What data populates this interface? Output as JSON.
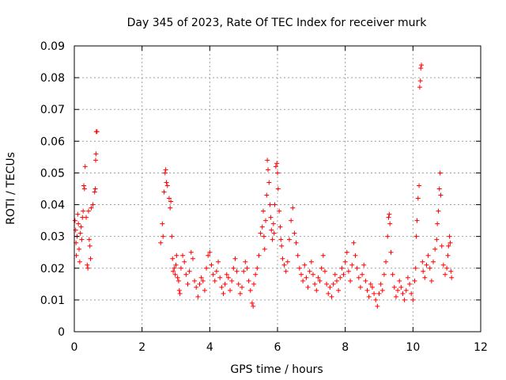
{
  "chart_data": {
    "type": "scatter",
    "title": "Day 345 of 2023, Rate Of TEC Index for receiver murk",
    "xlabel": "GPS time / hours",
    "ylabel": "ROTI / TECUs",
    "xlim": [
      0,
      12
    ],
    "ylim": [
      0,
      0.09
    ],
    "xticks": [
      0,
      2,
      4,
      6,
      8,
      10,
      12
    ],
    "yticks": [
      0,
      0.01,
      0.02,
      0.03,
      0.04,
      0.05,
      0.06,
      0.07,
      0.08,
      0.09
    ],
    "xtick_labels": [
      "0",
      "2",
      "4",
      "6",
      "8",
      "10",
      "12"
    ],
    "ytick_labels": [
      "0",
      "0.01",
      "0.02",
      "0.03",
      "0.04",
      "0.05",
      "0.06",
      "0.07",
      "0.08",
      "0.09"
    ],
    "grid": true,
    "marker": "+",
    "color": "#ff0000",
    "series": [
      {
        "name": "ROTI",
        "points": [
          [
            0.02,
            0.035
          ],
          [
            0.04,
            0.032
          ],
          [
            0.05,
            0.028
          ],
          [
            0.06,
            0.024
          ],
          [
            0.08,
            0.03
          ],
          [
            0.1,
            0.037
          ],
          [
            0.12,
            0.034
          ],
          [
            0.14,
            0.026
          ],
          [
            0.16,
            0.022
          ],
          [
            0.18,
            0.031
          ],
          [
            0.2,
            0.033
          ],
          [
            0.22,
            0.029
          ],
          [
            0.24,
            0.036
          ],
          [
            0.26,
            0.038
          ],
          [
            0.28,
            0.046
          ],
          [
            0.3,
            0.045
          ],
          [
            0.32,
            0.052
          ],
          [
            0.35,
            0.036
          ],
          [
            0.38,
            0.021
          ],
          [
            0.4,
            0.02
          ],
          [
            0.42,
            0.038
          ],
          [
            0.44,
            0.029
          ],
          [
            0.46,
            0.027
          ],
          [
            0.48,
            0.023
          ],
          [
            0.5,
            0.039
          ],
          [
            0.55,
            0.04
          ],
          [
            0.6,
            0.044
          ],
          [
            0.62,
            0.045
          ],
          [
            0.63,
            0.054
          ],
          [
            0.64,
            0.056
          ],
          [
            0.65,
            0.063
          ],
          [
            0.67,
            0.063
          ],
          [
            2.55,
            0.028
          ],
          [
            2.6,
            0.034
          ],
          [
            2.62,
            0.03
          ],
          [
            2.65,
            0.044
          ],
          [
            2.68,
            0.05
          ],
          [
            2.7,
            0.051
          ],
          [
            2.72,
            0.047
          ],
          [
            2.75,
            0.046
          ],
          [
            2.8,
            0.042
          ],
          [
            2.83,
            0.039
          ],
          [
            2.85,
            0.041
          ],
          [
            2.88,
            0.03
          ],
          [
            2.9,
            0.023
          ],
          [
            2.92,
            0.019
          ],
          [
            2.95,
            0.02
          ],
          [
            2.98,
            0.018
          ],
          [
            3.0,
            0.021
          ],
          [
            3.02,
            0.024
          ],
          [
            3.05,
            0.017
          ],
          [
            3.08,
            0.016
          ],
          [
            3.1,
            0.013
          ],
          [
            3.12,
            0.012
          ],
          [
            3.15,
            0.02
          ],
          [
            3.2,
            0.024
          ],
          [
            3.25,
            0.022
          ],
          [
            3.3,
            0.018
          ],
          [
            3.35,
            0.015
          ],
          [
            3.4,
            0.019
          ],
          [
            3.45,
            0.025
          ],
          [
            3.5,
            0.023
          ],
          [
            3.55,
            0.016
          ],
          [
            3.6,
            0.014
          ],
          [
            3.65,
            0.011
          ],
          [
            3.7,
            0.015
          ],
          [
            3.75,
            0.017
          ],
          [
            3.8,
            0.016
          ],
          [
            3.85,
            0.013
          ],
          [
            3.9,
            0.02
          ],
          [
            3.95,
            0.024
          ],
          [
            4.0,
            0.025
          ],
          [
            4.05,
            0.021
          ],
          [
            4.1,
            0.018
          ],
          [
            4.15,
            0.016
          ],
          [
            4.2,
            0.019
          ],
          [
            4.25,
            0.022
          ],
          [
            4.3,
            0.017
          ],
          [
            4.35,
            0.014
          ],
          [
            4.4,
            0.012
          ],
          [
            4.45,
            0.015
          ],
          [
            4.5,
            0.018
          ],
          [
            4.55,
            0.017
          ],
          [
            4.6,
            0.013
          ],
          [
            4.65,
            0.016
          ],
          [
            4.7,
            0.02
          ],
          [
            4.75,
            0.023
          ],
          [
            4.8,
            0.019
          ],
          [
            4.85,
            0.015
          ],
          [
            4.9,
            0.012
          ],
          [
            4.95,
            0.014
          ],
          [
            5.0,
            0.019
          ],
          [
            5.05,
            0.022
          ],
          [
            5.1,
            0.02
          ],
          [
            5.15,
            0.016
          ],
          [
            5.2,
            0.013
          ],
          [
            5.25,
            0.009
          ],
          [
            5.28,
            0.008
          ],
          [
            5.3,
            0.015
          ],
          [
            5.35,
            0.018
          ],
          [
            5.4,
            0.02
          ],
          [
            5.45,
            0.024
          ],
          [
            5.5,
            0.031
          ],
          [
            5.55,
            0.033
          ],
          [
            5.58,
            0.038
          ],
          [
            5.6,
            0.03
          ],
          [
            5.62,
            0.026
          ],
          [
            5.65,
            0.035
          ],
          [
            5.68,
            0.043
          ],
          [
            5.7,
            0.054
          ],
          [
            5.72,
            0.051
          ],
          [
            5.75,
            0.047
          ],
          [
            5.78,
            0.04
          ],
          [
            5.8,
            0.036
          ],
          [
            5.82,
            0.032
          ],
          [
            5.85,
            0.029
          ],
          [
            5.88,
            0.034
          ],
          [
            5.9,
            0.031
          ],
          [
            5.92,
            0.04
          ],
          [
            5.95,
            0.052
          ],
          [
            5.98,
            0.053
          ],
          [
            6.0,
            0.05
          ],
          [
            6.02,
            0.045
          ],
          [
            6.05,
            0.038
          ],
          [
            6.08,
            0.033
          ],
          [
            6.1,
            0.029
          ],
          [
            6.12,
            0.027
          ],
          [
            6.15,
            0.023
          ],
          [
            6.2,
            0.021
          ],
          [
            6.25,
            0.019
          ],
          [
            6.3,
            0.022
          ],
          [
            6.35,
            0.029
          ],
          [
            6.4,
            0.035
          ],
          [
            6.45,
            0.039
          ],
          [
            6.5,
            0.031
          ],
          [
            6.55,
            0.028
          ],
          [
            6.6,
            0.024
          ],
          [
            6.65,
            0.02
          ],
          [
            6.7,
            0.018
          ],
          [
            6.75,
            0.016
          ],
          [
            6.8,
            0.021
          ],
          [
            6.85,
            0.017
          ],
          [
            6.9,
            0.014
          ],
          [
            6.95,
            0.019
          ],
          [
            7.0,
            0.022
          ],
          [
            7.05,
            0.018
          ],
          [
            7.1,
            0.015
          ],
          [
            7.15,
            0.013
          ],
          [
            7.2,
            0.017
          ],
          [
            7.25,
            0.016
          ],
          [
            7.3,
            0.02
          ],
          [
            7.35,
            0.024
          ],
          [
            7.4,
            0.019
          ],
          [
            7.45,
            0.015
          ],
          [
            7.5,
            0.012
          ],
          [
            7.55,
            0.014
          ],
          [
            7.6,
            0.011
          ],
          [
            7.65,
            0.015
          ],
          [
            7.7,
            0.018
          ],
          [
            7.75,
            0.016
          ],
          [
            7.8,
            0.013
          ],
          [
            7.85,
            0.017
          ],
          [
            7.9,
            0.02
          ],
          [
            7.95,
            0.018
          ],
          [
            8.0,
            0.022
          ],
          [
            8.05,
            0.025
          ],
          [
            8.1,
            0.019
          ],
          [
            8.15,
            0.016
          ],
          [
            8.2,
            0.021
          ],
          [
            8.25,
            0.028
          ],
          [
            8.3,
            0.024
          ],
          [
            8.35,
            0.02
          ],
          [
            8.4,
            0.017
          ],
          [
            8.45,
            0.014
          ],
          [
            8.5,
            0.018
          ],
          [
            8.55,
            0.021
          ],
          [
            8.6,
            0.016
          ],
          [
            8.65,
            0.013
          ],
          [
            8.7,
            0.011
          ],
          [
            8.75,
            0.015
          ],
          [
            8.8,
            0.014
          ],
          [
            8.85,
            0.012
          ],
          [
            8.9,
            0.01
          ],
          [
            8.95,
            0.008
          ],
          [
            9.0,
            0.012
          ],
          [
            9.05,
            0.015
          ],
          [
            9.1,
            0.013
          ],
          [
            9.15,
            0.018
          ],
          [
            9.2,
            0.022
          ],
          [
            9.25,
            0.03
          ],
          [
            9.28,
            0.036
          ],
          [
            9.3,
            0.037
          ],
          [
            9.32,
            0.034
          ],
          [
            9.35,
            0.025
          ],
          [
            9.4,
            0.018
          ],
          [
            9.45,
            0.014
          ],
          [
            9.5,
            0.011
          ],
          [
            9.55,
            0.013
          ],
          [
            9.6,
            0.016
          ],
          [
            9.65,
            0.014
          ],
          [
            9.7,
            0.012
          ],
          [
            9.75,
            0.01
          ],
          [
            9.8,
            0.013
          ],
          [
            9.85,
            0.017
          ],
          [
            9.9,
            0.015
          ],
          [
            9.95,
            0.012
          ],
          [
            10.0,
            0.01
          ],
          [
            10.05,
            0.016
          ],
          [
            10.08,
            0.02
          ],
          [
            10.1,
            0.03
          ],
          [
            10.12,
            0.035
          ],
          [
            10.15,
            0.042
          ],
          [
            10.18,
            0.046
          ],
          [
            10.2,
            0.077
          ],
          [
            10.22,
            0.079
          ],
          [
            10.23,
            0.083
          ],
          [
            10.25,
            0.084
          ],
          [
            10.28,
            0.022
          ],
          [
            10.3,
            0.019
          ],
          [
            10.35,
            0.017
          ],
          [
            10.4,
            0.021
          ],
          [
            10.45,
            0.024
          ],
          [
            10.5,
            0.02
          ],
          [
            10.55,
            0.016
          ],
          [
            10.6,
            0.022
          ],
          [
            10.65,
            0.026
          ],
          [
            10.7,
            0.029
          ],
          [
            10.72,
            0.034
          ],
          [
            10.75,
            0.038
          ],
          [
            10.78,
            0.045
          ],
          [
            10.8,
            0.05
          ],
          [
            10.82,
            0.043
          ],
          [
            10.85,
            0.027
          ],
          [
            10.9,
            0.021
          ],
          [
            10.95,
            0.018
          ],
          [
            11.0,
            0.02
          ],
          [
            11.03,
            0.024
          ],
          [
            11.05,
            0.027
          ],
          [
            11.08,
            0.03
          ],
          [
            11.1,
            0.028
          ],
          [
            11.12,
            0.019
          ],
          [
            11.14,
            0.017
          ]
        ]
      }
    ]
  }
}
